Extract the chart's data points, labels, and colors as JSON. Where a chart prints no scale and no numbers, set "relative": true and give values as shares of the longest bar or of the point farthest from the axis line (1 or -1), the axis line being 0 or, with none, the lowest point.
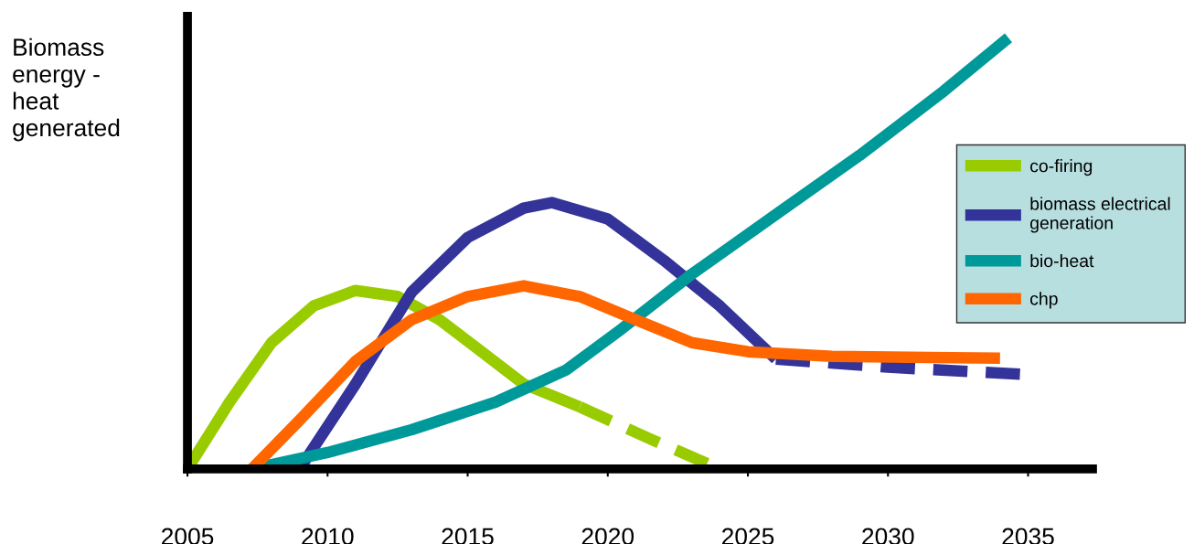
{
  "chart_data": {
    "type": "line",
    "relative": true,
    "ylabel": "Biomass\nenergy -\nheat\ngenerated",
    "xlim": [
      2005,
      2037.3
    ],
    "xticks": [
      2005,
      2010,
      2015,
      2020,
      2025,
      2030,
      2035
    ],
    "legend": "top right",
    "grid": false,
    "series": [
      {
        "name": "co-firing",
        "color": "#99cc00",
        "line_style": "solid",
        "x": [
          2005,
          2006.5,
          2008,
          2009.5,
          2011,
          2012.5,
          2014,
          2015.5,
          2017,
          2019
        ],
        "values": [
          0,
          0.155,
          0.293,
          0.378,
          0.414,
          0.4,
          0.346,
          0.272,
          0.197,
          0.144
        ]
      },
      {
        "color": "#99cc00",
        "line_style": "dashed",
        "x": [
          2019,
          2021.5,
          2024
        ],
        "values": [
          0.144,
          0.07,
          0
        ]
      },
      {
        "name": "biomass electrical\ngeneration",
        "color": "#333399",
        "line_style": "solid",
        "x": [
          2009,
          2011,
          2013,
          2015,
          2017,
          2018,
          2020,
          2022,
          2024,
          2026
        ],
        "values": [
          0,
          0.197,
          0.41,
          0.537,
          0.605,
          0.618,
          0.58,
          0.484,
          0.378,
          0.255
        ]
      },
      {
        "color": "#333399",
        "line_style": "dashed",
        "x": [
          2026,
          2030,
          2035
        ],
        "values": [
          0.255,
          0.236,
          0.219
        ]
      },
      {
        "name": "bio-heat",
        "color": "#009999",
        "line_style": "solid",
        "x": [
          2007.3,
          2010,
          2013,
          2016,
          2018.5,
          2020.5,
          2023,
          2026,
          2029,
          2032,
          2034.3
        ],
        "values": [
          0,
          0.038,
          0.091,
          0.155,
          0.229,
          0.325,
          0.452,
          0.59,
          0.728,
          0.877,
          1
        ]
      },
      {
        "name": "chp",
        "color": "#ff6600",
        "line_style": "solid",
        "x": [
          2007.3,
          2009,
          2011,
          2013,
          2015,
          2017,
          2019,
          2021,
          2023,
          2025,
          2028,
          2034
        ],
        "values": [
          0,
          0.113,
          0.25,
          0.346,
          0.4,
          0.425,
          0.4,
          0.346,
          0.293,
          0.272,
          0.261,
          0.257
        ]
      }
    ]
  }
}
